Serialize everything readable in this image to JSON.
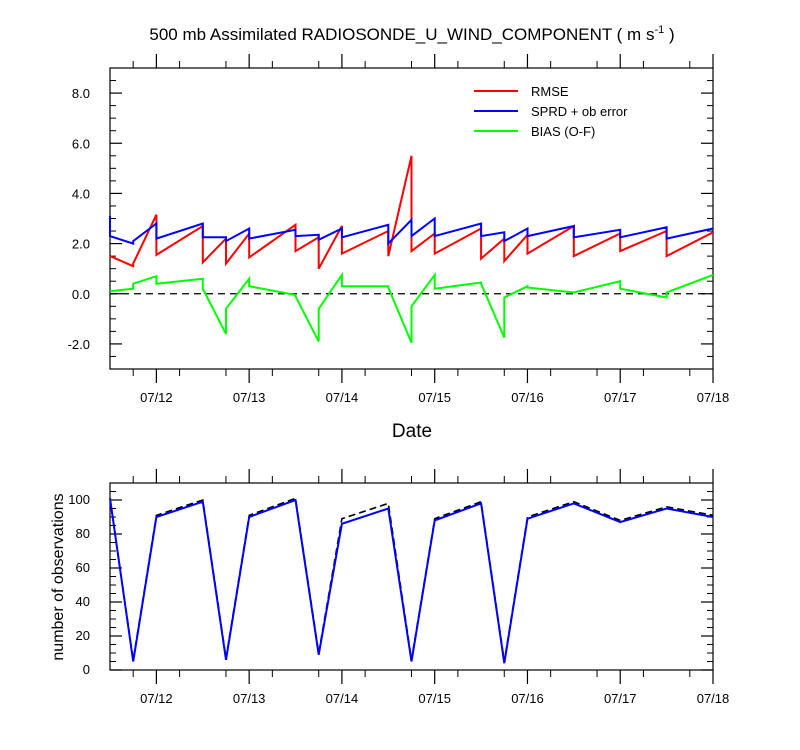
{
  "chart_data": [
    {
      "type": "line",
      "title": "500 mb Assimilated RADIOSONDE_U_WIND_COMPONENT ( m s",
      "title_unit_exponent": "-1",
      "title_end": " )",
      "xlabel": "Date",
      "ylabel": "",
      "xlim": [
        0,
        6.5
      ],
      "ylim": [
        -3,
        9
      ],
      "x_tick_labels": [
        "07/12",
        "07/13",
        "07/14",
        "07/15",
        "07/16",
        "07/17",
        "07/18"
      ],
      "x_tick_positions": [
        0.5,
        1.5,
        2.5,
        3.5,
        4.5,
        5.5,
        6.5
      ],
      "x_minor_ticks": [
        0.25,
        0.75,
        1.25,
        1.75,
        2.25,
        2.75,
        3.25,
        3.75,
        4.25,
        4.75,
        5.25,
        5.75,
        6.25
      ],
      "y_ticks": [
        -2,
        0,
        2,
        4,
        6,
        8
      ],
      "y_tick_labels": [
        "-2.0",
        "0.0",
        "2.0",
        "4.0",
        "6.0",
        "8.0"
      ],
      "grid": false,
      "legend": "top-right",
      "reference_line": {
        "y": 0,
        "style": "dashed",
        "color": "#000000"
      },
      "series": [
        {
          "name": "RMSE",
          "color": "#ff0000",
          "points": [
            [
              0,
              1.5
            ],
            [
              0.25,
              1.1
            ],
            [
              0.25,
              1.2
            ],
            [
              0.5,
              3.15
            ],
            [
              0.5,
              1.55
            ],
            [
              1.0,
              2.7
            ],
            [
              1.0,
              1.25
            ],
            [
              1.25,
              2.2
            ],
            [
              1.25,
              1.2
            ],
            [
              1.5,
              2.4
            ],
            [
              1.5,
              1.45
            ],
            [
              2.0,
              2.75
            ],
            [
              2.0,
              1.7
            ],
            [
              2.25,
              2.25
            ],
            [
              2.25,
              1.0
            ],
            [
              2.5,
              2.7
            ],
            [
              2.5,
              1.6
            ],
            [
              3.0,
              2.5
            ],
            [
              3.0,
              1.5
            ],
            [
              3.25,
              5.5
            ],
            [
              3.25,
              1.7
            ],
            [
              3.5,
              2.4
            ],
            [
              3.5,
              1.6
            ],
            [
              4.0,
              2.6
            ],
            [
              4.0,
              1.4
            ],
            [
              4.25,
              2.2
            ],
            [
              4.25,
              1.3
            ],
            [
              4.5,
              2.35
            ],
            [
              4.5,
              1.6
            ],
            [
              5.0,
              2.7
            ],
            [
              5.0,
              1.5
            ],
            [
              5.5,
              2.4
            ],
            [
              5.5,
              1.7
            ],
            [
              6.0,
              2.5
            ],
            [
              6.0,
              1.5
            ],
            [
              6.5,
              2.45
            ]
          ]
        },
        {
          "name": "SPRD + ob error",
          "color": "#0000ff",
          "points": [
            [
              0,
              3.1
            ],
            [
              0,
              2.3
            ],
            [
              0.25,
              2.0
            ],
            [
              0.25,
              2.1
            ],
            [
              0.5,
              2.8
            ],
            [
              0.5,
              2.2
            ],
            [
              1.0,
              2.8
            ],
            [
              1.0,
              2.25
            ],
            [
              1.25,
              2.25
            ],
            [
              1.25,
              2.1
            ],
            [
              1.5,
              2.6
            ],
            [
              1.5,
              2.2
            ],
            [
              2.0,
              2.55
            ],
            [
              2.0,
              2.3
            ],
            [
              2.25,
              2.35
            ],
            [
              2.25,
              2.15
            ],
            [
              2.5,
              2.6
            ],
            [
              2.5,
              2.25
            ],
            [
              3.0,
              2.75
            ],
            [
              3.0,
              2.0
            ],
            [
              3.25,
              2.95
            ],
            [
              3.25,
              2.3
            ],
            [
              3.5,
              3.0
            ],
            [
              3.5,
              2.3
            ],
            [
              4.0,
              2.8
            ],
            [
              4.0,
              2.3
            ],
            [
              4.25,
              2.45
            ],
            [
              4.25,
              2.1
            ],
            [
              4.5,
              2.6
            ],
            [
              4.5,
              2.3
            ],
            [
              5.0,
              2.7
            ],
            [
              5.0,
              2.25
            ],
            [
              5.5,
              2.55
            ],
            [
              5.5,
              2.25
            ],
            [
              6.0,
              2.65
            ],
            [
              6.0,
              2.2
            ],
            [
              6.5,
              2.6
            ]
          ]
        },
        {
          "name": "BIAS (O-F)",
          "color": "#00ff00",
          "points": [
            [
              0,
              0.1
            ],
            [
              0.25,
              0.2
            ],
            [
              0.25,
              0.4
            ],
            [
              0.5,
              0.7
            ],
            [
              0.5,
              0.4
            ],
            [
              1.0,
              0.6
            ],
            [
              1.0,
              0.2
            ],
            [
              1.25,
              -1.6
            ],
            [
              1.25,
              -0.6
            ],
            [
              1.5,
              0.6
            ],
            [
              1.5,
              0.3
            ],
            [
              2.0,
              -0.05
            ],
            [
              2.0,
              -0.1
            ],
            [
              2.25,
              -1.9
            ],
            [
              2.25,
              -0.6
            ],
            [
              2.5,
              0.75
            ],
            [
              2.5,
              0.3
            ],
            [
              3.0,
              0.3
            ],
            [
              3.0,
              0.25
            ],
            [
              3.25,
              -1.95
            ],
            [
              3.25,
              -0.5
            ],
            [
              3.5,
              0.75
            ],
            [
              3.5,
              0.2
            ],
            [
              4.0,
              0.45
            ],
            [
              4.0,
              0.4
            ],
            [
              4.25,
              -1.75
            ],
            [
              4.25,
              -0.15
            ],
            [
              4.5,
              0.3
            ],
            [
              4.5,
              0.25
            ],
            [
              5.0,
              0.05
            ],
            [
              5.5,
              0.5
            ],
            [
              5.5,
              0.2
            ],
            [
              6.0,
              -0.15
            ],
            [
              6.0,
              0.05
            ],
            [
              6.5,
              0.75
            ]
          ]
        }
      ]
    },
    {
      "type": "line",
      "title": "",
      "xlabel": "",
      "ylabel": "number of observations",
      "xlim": [
        0,
        6.5
      ],
      "ylim": [
        0,
        110
      ],
      "x_tick_labels": [
        "07/12",
        "07/13",
        "07/14",
        "07/15",
        "07/16",
        "07/17",
        "07/18"
      ],
      "x_tick_positions": [
        0.5,
        1.5,
        2.5,
        3.5,
        4.5,
        5.5,
        6.5
      ],
      "x_minor_ticks": [
        0.25,
        0.75,
        1.25,
        1.75,
        2.25,
        2.75,
        3.25,
        3.75,
        4.25,
        4.75,
        5.25,
        5.75,
        6.25
      ],
      "y_ticks": [
        0,
        20,
        40,
        60,
        80,
        100
      ],
      "y_tick_labels": [
        "0",
        "20",
        "40",
        "60",
        "80",
        "100"
      ],
      "y_minor_step": 5,
      "grid": false,
      "series": [
        {
          "name": "",
          "color": "#000000",
          "dashed": true,
          "points": [
            [
              0,
              101
            ],
            [
              0.25,
              6
            ],
            [
              0.5,
              91
            ],
            [
              1.0,
              100
            ],
            [
              1.25,
              7
            ],
            [
              1.5,
              91
            ],
            [
              2.0,
              101
            ],
            [
              2.25,
              10
            ],
            [
              2.5,
              89
            ],
            [
              3.0,
              98
            ],
            [
              3.25,
              6
            ],
            [
              3.5,
              89
            ],
            [
              4.0,
              99
            ],
            [
              4.25,
              5
            ],
            [
              4.5,
              90
            ],
            [
              5.0,
              99
            ],
            [
              5.5,
              88
            ],
            [
              6.0,
              96
            ],
            [
              6.5,
              91
            ]
          ]
        },
        {
          "name": "",
          "color": "#0000ff",
          "dashed": false,
          "points": [
            [
              0,
              101
            ],
            [
              0.25,
              5
            ],
            [
              0.5,
              90
            ],
            [
              1.0,
              99
            ],
            [
              1.25,
              6
            ],
            [
              1.5,
              90
            ],
            [
              2.0,
              100
            ],
            [
              2.25,
              9
            ],
            [
              2.5,
              86
            ],
            [
              3.0,
              95
            ],
            [
              3.25,
              5
            ],
            [
              3.5,
              88
            ],
            [
              4.0,
              98
            ],
            [
              4.25,
              4
            ],
            [
              4.5,
              89
            ],
            [
              5.0,
              98
            ],
            [
              5.5,
              87
            ],
            [
              6.0,
              95
            ],
            [
              6.5,
              90
            ]
          ]
        }
      ]
    }
  ]
}
